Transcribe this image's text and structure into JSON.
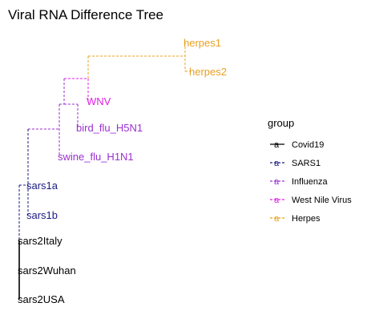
{
  "chart_data": {
    "type": "tree",
    "title": "Viral RNA Difference Tree",
    "legend": {
      "title": "group",
      "placement": "right",
      "entries": [
        {
          "label": "Covid19",
          "color": "#000000"
        },
        {
          "label": "SARS1",
          "color": "#1a1a80"
        },
        {
          "label": "Influenza",
          "color": "#9b30d0"
        },
        {
          "label": "West Nile Virus",
          "color": "#e020e8"
        },
        {
          "label": "Herpes",
          "color": "#e8a020"
        }
      ],
      "key_glyph": "a"
    },
    "tips": [
      {
        "label": "herpes1",
        "group": "Herpes"
      },
      {
        "label": "herpes2",
        "group": "Herpes"
      },
      {
        "label": "WNV",
        "group": "West Nile Virus"
      },
      {
        "label": "bird_flu_H5N1",
        "group": "Influenza"
      },
      {
        "label": "swine_flu_H1N1",
        "group": "Influenza"
      },
      {
        "label": "sars1a",
        "group": "SARS1"
      },
      {
        "label": "sars1b",
        "group": "SARS1"
      },
      {
        "label": "sars2Italy",
        "group": "Covid19"
      },
      {
        "label": "sars2Wuhan",
        "group": "Covid19"
      },
      {
        "label": "sars2USA",
        "group": "Covid19"
      }
    ]
  }
}
